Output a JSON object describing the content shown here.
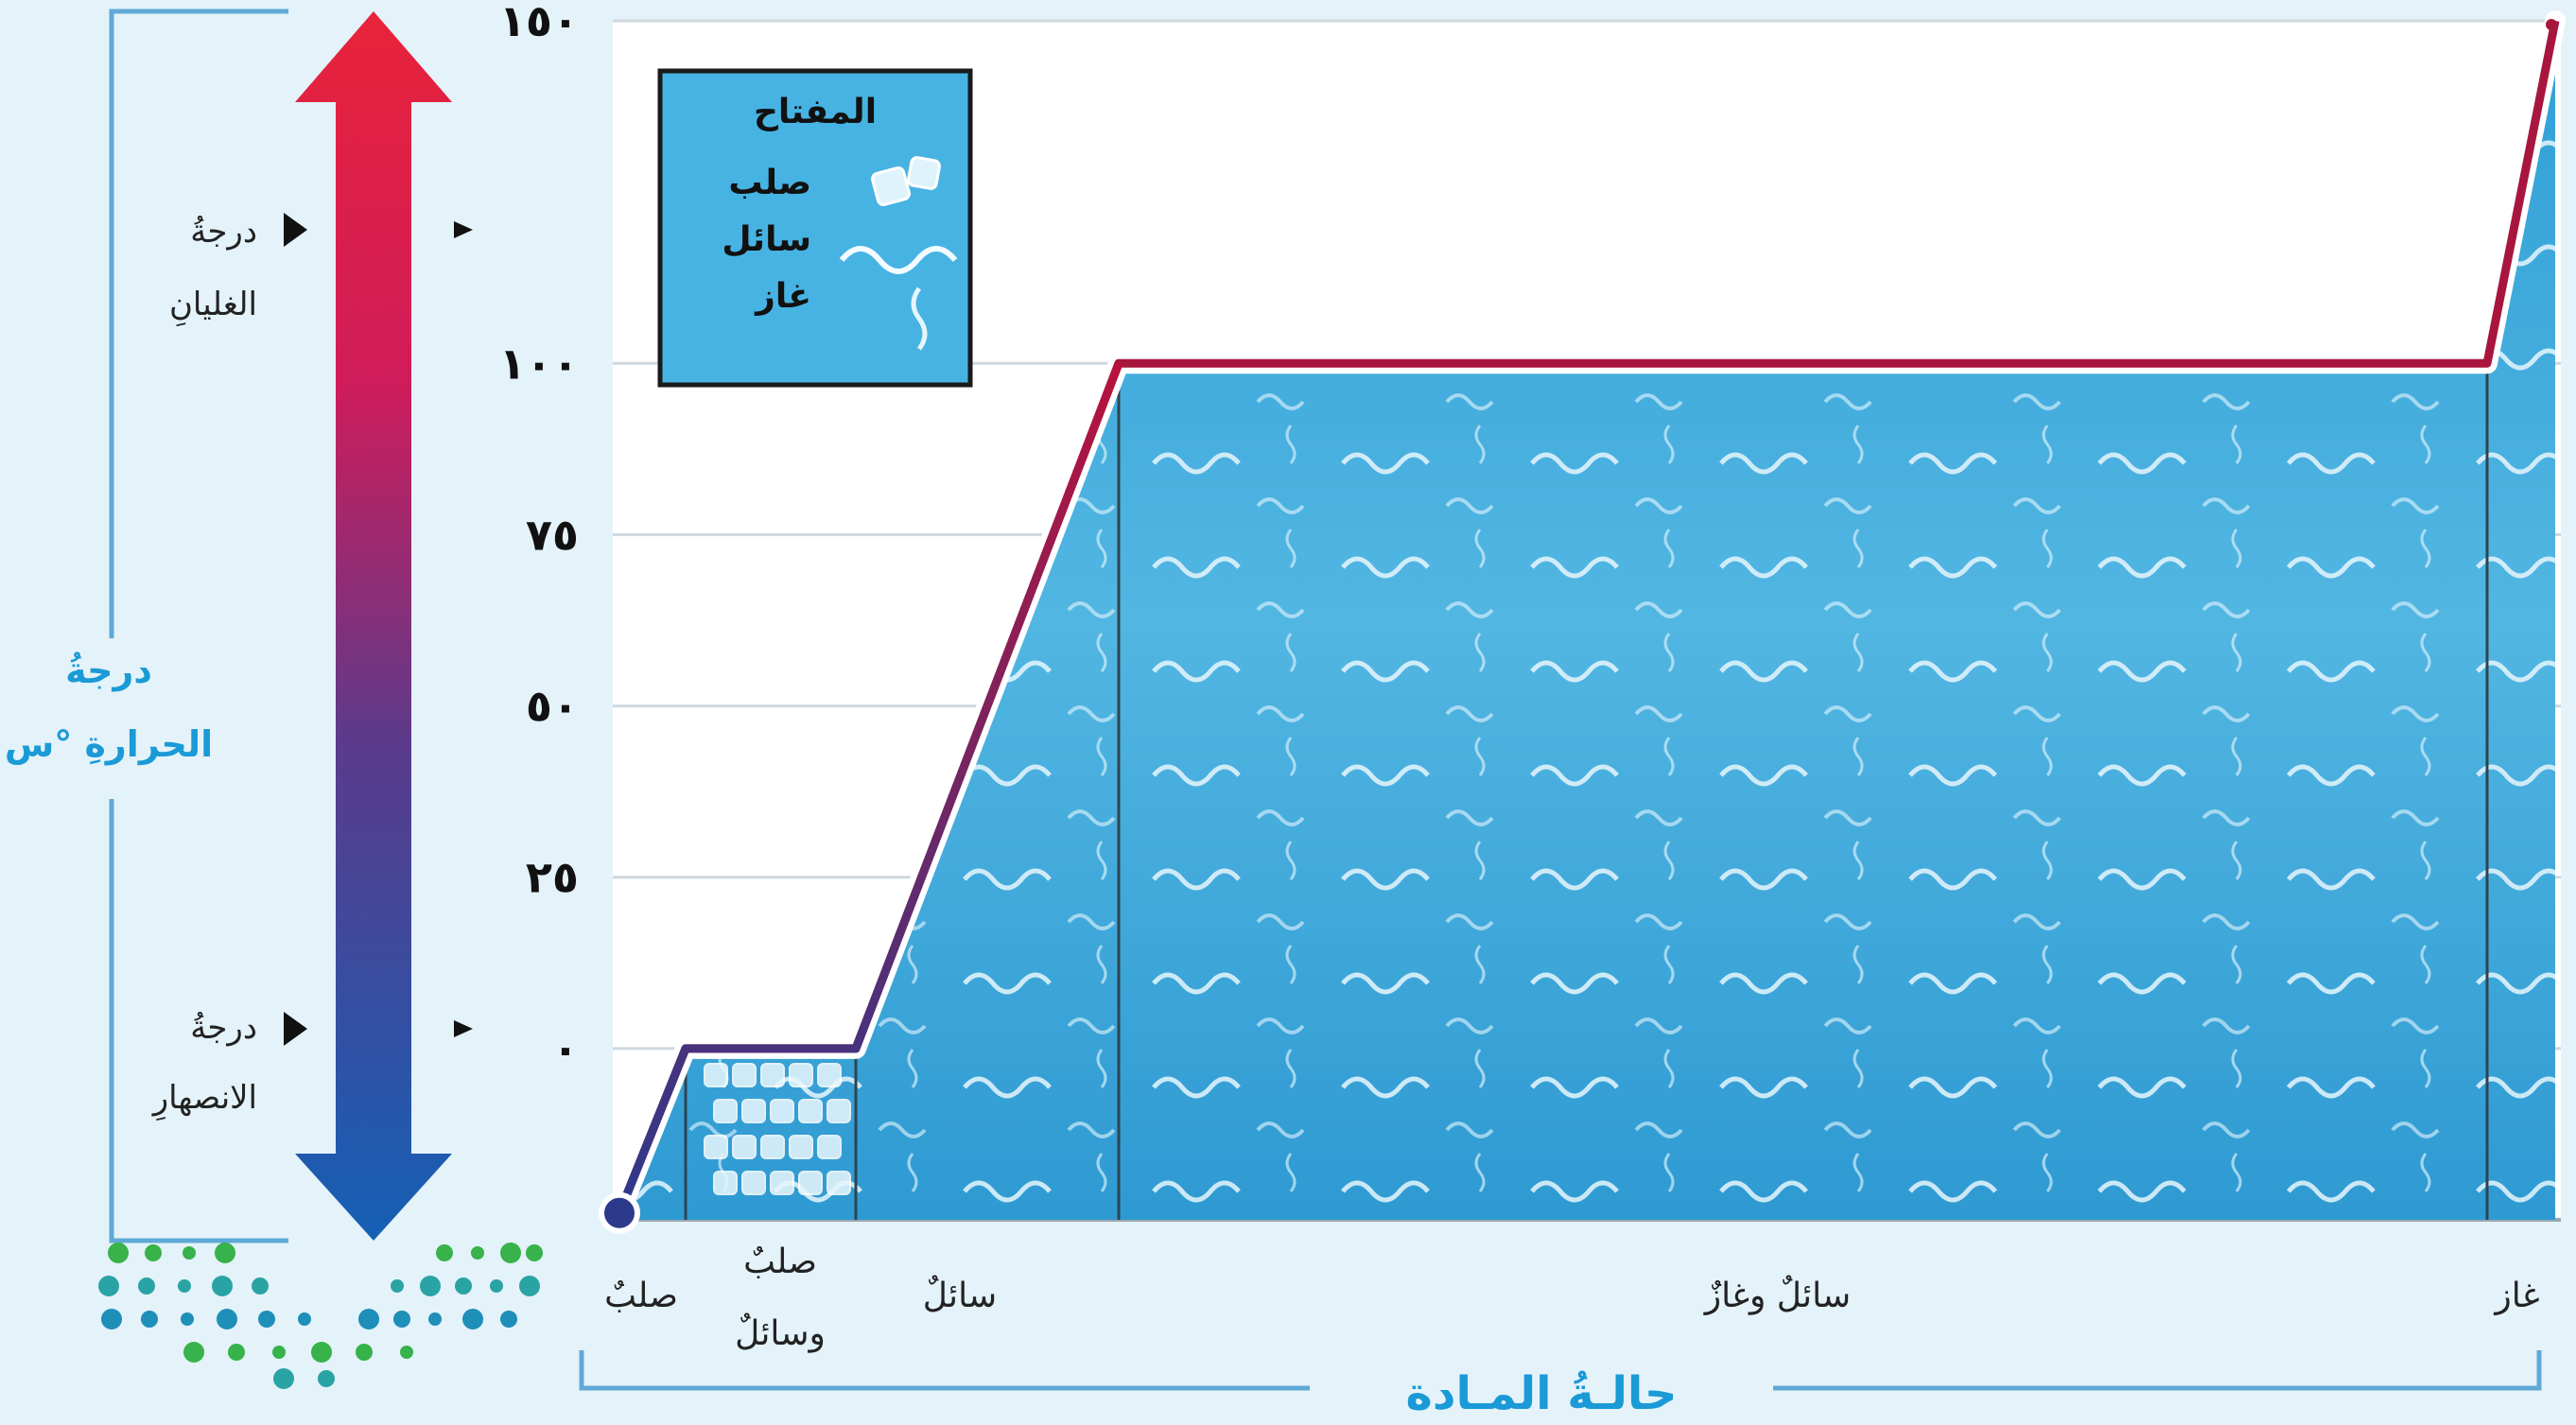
{
  "chart_data": {
    "type": "line",
    "title": "",
    "ylabel": "درجةُ الحرارةِ °س",
    "xlabel": "حالـةُ المـادة",
    "ylim": [
      -25,
      150
    ],
    "y_ticks": [
      0,
      25,
      50,
      75,
      100,
      150
    ],
    "y_tick_labels": [
      "٠",
      "٢٥",
      "٥٠",
      "٧٥",
      "١٠٠",
      "١٥٠"
    ],
    "x": [
      0,
      1,
      2,
      3,
      4,
      5,
      6,
      7
    ],
    "series": [
      {
        "values": [
          -24,
          0,
          0,
          100,
          100,
          100,
          100,
          150
        ]
      }
    ],
    "phases": [
      {
        "label": "صلبٌ",
        "label2": ""
      },
      {
        "label": "صلبٌ",
        "label2": "وسائلٌ"
      },
      {
        "label": "سائلٌ",
        "label2": ""
      },
      {
        "label": "سائلٌ وغازٌ",
        "label2": ""
      },
      {
        "label": "غاز",
        "label2": ""
      }
    ],
    "markers": {
      "boiling": {
        "line1": "درجةُ",
        "line2": "الغليانِ"
      },
      "melting": {
        "line1": "درجةُ",
        "line2": "الانصهارِ"
      }
    },
    "legend": {
      "title": "المفتاح",
      "items": [
        "صلب",
        "سائل",
        "غاز"
      ],
      "placement": "top-left"
    },
    "grid": true
  },
  "colors": {
    "line": "#a8163e",
    "liquid": "#3aa6d8",
    "arrow_top": "#e8233a",
    "arrow_bottom": "#1460b5",
    "axis_label": "#1a9ad6"
  }
}
